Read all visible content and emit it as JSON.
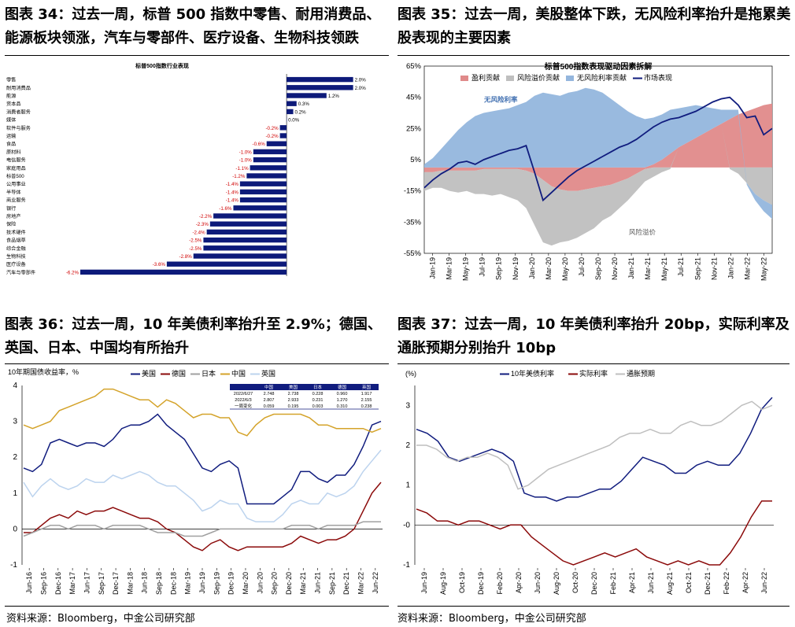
{
  "titles": {
    "c34": "图表 34：过去一周，标普 500 指数中零售、耐用消费品、能源板块领涨，汽车与零部件、医疗设备、生物科技领跌",
    "c35": "图表 35：过去一周，美股整体下跌，无风险利率抬升是拖累美股表现的主要因素",
    "c36": "图表 36：过去一周，10 年美债利率抬升至 2.9%；德国、英国、日本、中国均有所抬升",
    "c37": "图表 37：过去一周，10 年美债利率抬升 20bp，实际利率及通胀预期分别抬升 10bp"
  },
  "source_left": "资料来源：Bloomberg，中金公司研究部",
  "source_right": "资料来源：Bloomberg，中金公司研究部",
  "chart_data": [
    {
      "id": "c34",
      "type": "bar",
      "orientation": "horizontal",
      "title": "标普500指数行业表现",
      "bar_color": "#0d1a7a",
      "neg_label_color": "#d00000",
      "categories": [
        "零售",
        "耐用消费品",
        "能源",
        "资本品",
        "消费者服务",
        "媒体",
        "软件与服务",
        "运输",
        "食品",
        "原材料",
        "电信服务",
        "家庭用品",
        "标普500",
        "公用事业",
        "半导体",
        "商业服务",
        "银行",
        "房地产",
        "保险",
        "技术硬件",
        "食品烟草",
        "综合金融",
        "生物科技",
        "医疗设备",
        "汽车与零部件"
      ],
      "values": [
        2.0,
        2.0,
        1.2,
        0.3,
        0.2,
        0.0,
        -0.2,
        -0.2,
        -0.6,
        -1.0,
        -1.0,
        -1.1,
        -1.2,
        -1.4,
        -1.4,
        -1.4,
        -1.6,
        -2.2,
        -2.3,
        -2.4,
        -2.5,
        -2.5,
        -2.8,
        -3.6,
        -6.2
      ],
      "labels": [
        "2.0%",
        "2.0%",
        "1.2%",
        "0.3%",
        "0.2%",
        "0.0%",
        "-0.2%",
        "-0.2%",
        "-0.6%",
        "-1.0%",
        "-1.0%",
        "-1.1%",
        "-1.2%",
        "-1.4%",
        "-1.4%",
        "-1.4%",
        "-1.6%",
        "-2.2%",
        "-2.3%",
        "-2.4%",
        "-2.5%",
        "-2.5%",
        "-2.8%",
        "-3.6%",
        "-6.2%"
      ],
      "xlim": [
        -6.2,
        2.6
      ]
    },
    {
      "id": "c35",
      "type": "area",
      "title": "标普500指数表现驱动因素拆解",
      "legend": [
        {
          "name": "盈利贡献",
          "color": "#e08a8a",
          "kind": "area"
        },
        {
          "name": "风险溢价贡献",
          "color": "#bfbfbf",
          "kind": "area"
        },
        {
          "name": "无风险利率贡献",
          "color": "#94b6dd",
          "kind": "area"
        },
        {
          "name": "市场表现",
          "color": "#101c7e",
          "kind": "line"
        }
      ],
      "annotations": [
        {
          "text": "无风险利率",
          "color": "#3f6eb0"
        },
        {
          "text": "风险溢价",
          "color": "#555555"
        }
      ],
      "yticks": [
        "65%",
        "45%",
        "25%",
        "5%",
        "-15%",
        "-35%",
        "-55%"
      ],
      "ylim": [
        -55,
        65
      ],
      "xticks": [
        "Jan-19",
        "Mar-19",
        "May-19",
        "Jul-19",
        "Sep-19",
        "Nov-19",
        "Jan-20",
        "Mar-20",
        "May-20",
        "Jul-20",
        "Sep-20",
        "Nov-20",
        "Jan-21",
        "Mar-21",
        "May-21",
        "Jul-21",
        "Sep-21",
        "Nov-21",
        "Jan-22",
        "Mar-22",
        "May-22"
      ],
      "x": [
        0,
        1,
        2,
        3,
        4,
        5,
        6,
        7,
        8,
        9,
        10,
        11,
        12,
        13,
        14,
        15,
        16,
        17,
        18,
        19,
        20,
        21,
        22,
        23,
        24,
        25,
        26,
        27,
        28,
        29,
        30,
        31,
        32,
        33,
        34,
        35,
        36,
        37,
        38,
        39,
        40,
        41
      ],
      "series": [
        {
          "name": "盈利贡献",
          "values": [
            -3,
            -3,
            -2,
            -2,
            -2,
            -2,
            -2,
            -1,
            -1,
            -1,
            -1,
            -1,
            -2,
            -4,
            -8,
            -12,
            -14,
            -15,
            -15,
            -14,
            -13,
            -12,
            -11,
            -9,
            -7,
            -4,
            -1,
            2,
            5,
            9,
            13,
            16,
            19,
            22,
            25,
            28,
            31,
            34,
            36,
            38,
            40,
            41
          ]
        },
        {
          "name": "风险溢价贡献",
          "values": [
            -12,
            -10,
            -11,
            -13,
            -14,
            -13,
            -15,
            -16,
            -17,
            -16,
            -18,
            -20,
            -24,
            -33,
            -40,
            -38,
            -34,
            -32,
            -30,
            -28,
            -26,
            -22,
            -20,
            -17,
            -14,
            -11,
            -8,
            -6,
            -3,
            -1,
            0,
            0,
            0,
            0,
            0,
            0,
            -1,
            -4,
            -10,
            -17,
            -21,
            -24
          ]
        },
        {
          "name": "无风险利率贡献",
          "values": [
            2,
            6,
            12,
            18,
            24,
            29,
            33,
            35,
            36,
            37,
            38,
            40,
            42,
            46,
            48,
            47,
            46,
            48,
            49,
            51,
            50,
            48,
            44,
            40,
            36,
            33,
            31,
            30,
            29,
            28,
            25,
            23,
            21,
            17,
            13,
            9,
            6,
            3,
            -1,
            -4,
            -7,
            -9
          ]
        },
        {
          "name": "市场表现",
          "values": [
            -13,
            -8,
            -4,
            -1,
            3,
            4,
            2,
            5,
            7,
            9,
            11,
            12,
            14,
            -3,
            -21,
            -16,
            -11,
            -6,
            -2,
            1,
            4,
            7,
            10,
            13,
            15,
            18,
            22,
            26,
            29,
            31,
            32,
            34,
            36,
            39,
            42,
            44,
            45,
            40,
            32,
            33,
            21,
            25
          ]
        }
      ]
    },
    {
      "id": "c36",
      "type": "line",
      "ylabel": "10年期国债收益率，%",
      "ylim": [
        -1,
        4
      ],
      "yticks": [
        "-1",
        "0",
        "1",
        "2",
        "3",
        "4"
      ],
      "xticks": [
        "Jun-16",
        "Sep-16",
        "Dec-16",
        "Mar-17",
        "Jun-17",
        "Sep-17",
        "Dec-17",
        "Mar-18",
        "Jun-18",
        "Sep-18",
        "Dec-18",
        "Mar-19",
        "Jun-19",
        "Sep-19",
        "Dec-19",
        "Mar-20",
        "Jun-20",
        "Sep-20",
        "Dec-20",
        "Mar-21",
        "Jun-21",
        "Sep-21",
        "Dec-21",
        "Mar-22",
        "Jun-22"
      ],
      "series": [
        {
          "name": "美国",
          "color": "#101c7e",
          "values": [
            1.7,
            1.6,
            1.8,
            2.4,
            2.5,
            2.4,
            2.3,
            2.4,
            2.4,
            2.3,
            2.5,
            2.8,
            2.9,
            2.9,
            3.0,
            3.2,
            2.9,
            2.7,
            2.5,
            2.1,
            1.7,
            1.6,
            1.8,
            1.9,
            1.7,
            0.7,
            0.7,
            0.7,
            0.7,
            0.9,
            1.1,
            1.6,
            1.6,
            1.4,
            1.3,
            1.5,
            1.5,
            1.8,
            2.3,
            2.9,
            3.0
          ]
        },
        {
          "name": "德国",
          "color": "#8b0a0a",
          "values": [
            -0.1,
            -0.1,
            0.1,
            0.3,
            0.4,
            0.3,
            0.5,
            0.4,
            0.5,
            0.5,
            0.6,
            0.5,
            0.4,
            0.3,
            0.3,
            0.2,
            0.0,
            -0.1,
            -0.3,
            -0.5,
            -0.6,
            -0.4,
            -0.3,
            -0.5,
            -0.6,
            -0.5,
            -0.5,
            -0.5,
            -0.5,
            -0.5,
            -0.4,
            -0.2,
            -0.3,
            -0.4,
            -0.3,
            -0.3,
            -0.2,
            0.0,
            0.5,
            1.0,
            1.3
          ]
        },
        {
          "name": "日本",
          "color": "#a0a0a0",
          "values": [
            -0.2,
            -0.1,
            0.0,
            0.1,
            0.1,
            0.0,
            0.1,
            0.1,
            0.1,
            0.0,
            0.1,
            0.1,
            0.1,
            0.1,
            0.0,
            -0.1,
            -0.1,
            -0.1,
            -0.2,
            -0.2,
            -0.2,
            -0.1,
            0.0,
            0.0,
            0.0,
            0.0,
            0.0,
            0.0,
            0.0,
            0.0,
            0.1,
            0.1,
            0.1,
            0.0,
            0.1,
            0.1,
            0.1,
            0.1,
            0.2,
            0.2,
            0.2
          ]
        },
        {
          "name": "中国",
          "color": "#d4a32a",
          "values": [
            2.9,
            2.8,
            2.9,
            3.0,
            3.3,
            3.4,
            3.5,
            3.6,
            3.7,
            3.9,
            3.9,
            3.8,
            3.7,
            3.6,
            3.6,
            3.4,
            3.6,
            3.5,
            3.3,
            3.1,
            3.2,
            3.2,
            3.1,
            3.1,
            2.7,
            2.6,
            2.9,
            3.1,
            3.2,
            3.2,
            3.2,
            3.2,
            3.1,
            2.9,
            2.9,
            2.8,
            2.8,
            2.8,
            2.8,
            2.7,
            2.8
          ]
        },
        {
          "name": "英国",
          "color": "#bcd3ee",
          "values": [
            1.3,
            0.9,
            1.2,
            1.4,
            1.2,
            1.1,
            1.2,
            1.4,
            1.3,
            1.3,
            1.5,
            1.4,
            1.5,
            1.6,
            1.5,
            1.3,
            1.2,
            1.2,
            1.0,
            0.8,
            0.5,
            0.6,
            0.8,
            0.7,
            0.7,
            0.3,
            0.2,
            0.2,
            0.2,
            0.4,
            0.7,
            0.8,
            0.7,
            0.7,
            1.0,
            0.9,
            1.0,
            1.2,
            1.6,
            1.9,
            2.2
          ]
        }
      ],
      "table": {
        "headers": [
          "",
          "中国",
          "美国",
          "日本",
          "德国",
          "英国"
        ],
        "rows": [
          [
            "2022/6/27",
            "2.748",
            "2.738",
            "0.228",
            "0.960",
            "1.917"
          ],
          [
            "2022/6/3",
            "2.807",
            "2.933",
            "0.231",
            "1.270",
            "2.155"
          ],
          [
            "一周变化",
            "0.059",
            "0.195",
            "0.003",
            "0.310",
            "0.238"
          ]
        ]
      }
    },
    {
      "id": "c37",
      "type": "line",
      "ylabel": "(%)",
      "ylim": [
        -1,
        3.5
      ],
      "yticks": [
        "-1",
        "-0",
        "1",
        "2",
        "3"
      ],
      "xticks": [
        "Jun-19",
        "Aug-19",
        "Oct-19",
        "Dec-19",
        "Feb-20",
        "Apr-20",
        "Jun-20",
        "Aug-20",
        "Oct-20",
        "Dec-20",
        "Feb-21",
        "Apr-21",
        "Jun-21",
        "Aug-21",
        "Oct-21",
        "Dec-21",
        "Feb-22",
        "Apr-22",
        "Jun-22"
      ],
      "series": [
        {
          "name": "10年美债利率",
          "color": "#101c7e",
          "values": [
            2.4,
            2.3,
            2.1,
            1.7,
            1.6,
            1.7,
            1.8,
            1.9,
            1.8,
            1.6,
            0.8,
            0.7,
            0.7,
            0.6,
            0.7,
            0.7,
            0.8,
            0.9,
            0.9,
            1.1,
            1.4,
            1.7,
            1.6,
            1.5,
            1.3,
            1.3,
            1.5,
            1.6,
            1.5,
            1.5,
            1.8,
            2.3,
            2.9,
            3.2
          ]
        },
        {
          "name": "实际利率",
          "color": "#8b0a0a",
          "values": [
            0.4,
            0.3,
            0.1,
            0.1,
            0.0,
            0.1,
            0.1,
            0.0,
            -0.1,
            0.0,
            0.0,
            -0.3,
            -0.5,
            -0.7,
            -0.9,
            -1.0,
            -0.9,
            -0.8,
            -0.7,
            -0.8,
            -0.7,
            -0.6,
            -0.8,
            -0.9,
            -1.0,
            -0.9,
            -1.0,
            -0.9,
            -1.0,
            -1.0,
            -0.7,
            -0.3,
            0.2,
            0.6,
            0.6
          ]
        },
        {
          "name": "通胀预期",
          "color": "#bfbfbf",
          "values": [
            2.0,
            2.0,
            1.9,
            1.7,
            1.6,
            1.7,
            1.7,
            1.8,
            1.7,
            1.5,
            0.9,
            1.0,
            1.2,
            1.4,
            1.5,
            1.6,
            1.7,
            1.8,
            1.9,
            2.0,
            2.2,
            2.3,
            2.3,
            2.4,
            2.3,
            2.3,
            2.5,
            2.6,
            2.5,
            2.5,
            2.6,
            2.8,
            3.0,
            3.1,
            2.9,
            3.0
          ]
        }
      ]
    }
  ]
}
